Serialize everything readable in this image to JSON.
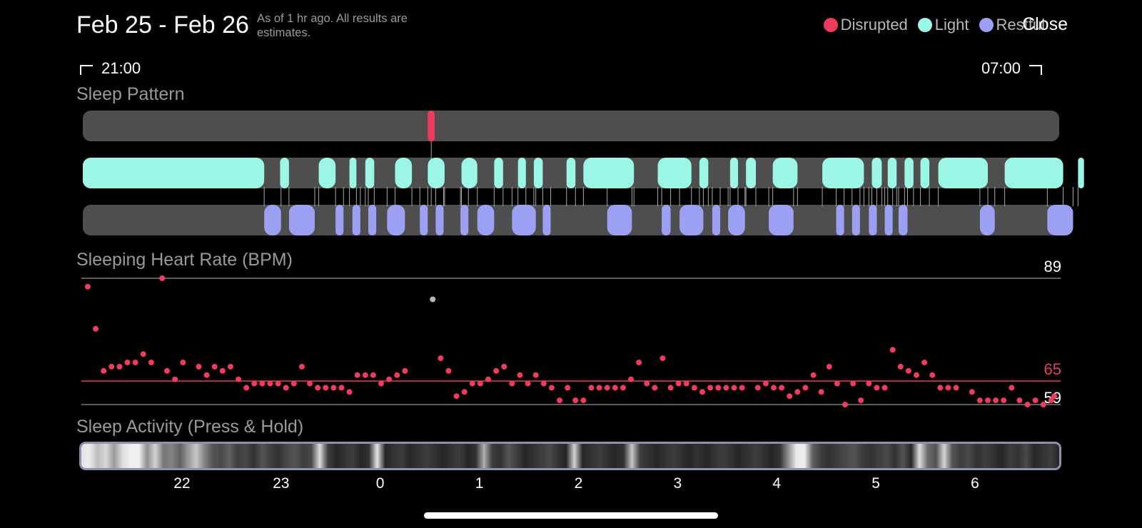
{
  "header": {
    "title": "Feb 25 - Feb 26",
    "note": "As of 1 hr ago. All results are estimates.",
    "close_label": "Close"
  },
  "legend": [
    {
      "label": "Disrupted",
      "color": "#ef3b5d"
    },
    {
      "label": "Light",
      "color": "#9bf6e6"
    },
    {
      "label": "Restful",
      "color": "#9ba0f2"
    }
  ],
  "time_range": {
    "start": "21:00",
    "end": "07:00"
  },
  "sections": {
    "sleep_pattern": "Sleep Pattern",
    "heart_rate": "Sleeping Heart Rate (BPM)",
    "activity": "Sleep Activity (Press & Hold)"
  },
  "x_axis": {
    "labels": [
      "22",
      "23",
      "0",
      "1",
      "2",
      "3",
      "4",
      "5",
      "6"
    ]
  },
  "colors": {
    "track": "#4e4e4e",
    "disrupted": "#ef3b5d",
    "light": "#9bf6e6",
    "restful": "#9ba0f2",
    "avg_line": "#e0415e"
  },
  "sleep_pattern": {
    "window_hours": [
      21.0,
      6.85
    ],
    "disrupted": [
      [
        0.48,
        0.55
      ]
    ],
    "light": [
      [
        21.0,
        22.83
      ],
      [
        22.99,
        23.08
      ],
      [
        23.38,
        23.55
      ],
      [
        23.69,
        23.76
      ],
      [
        23.85,
        23.94
      ],
      [
        24.15,
        24.32
      ],
      [
        24.48,
        24.65
      ],
      [
        24.82,
        24.98
      ],
      [
        25.15,
        25.24
      ],
      [
        25.39,
        25.47
      ],
      [
        25.55,
        25.64
      ],
      [
        25.88,
        25.97
      ],
      [
        26.05,
        26.56
      ],
      [
        26.8,
        27.14
      ],
      [
        27.22,
        27.31
      ],
      [
        27.53,
        27.61
      ],
      [
        27.69,
        27.79
      ],
      [
        27.96,
        28.21
      ],
      [
        28.46,
        28.88
      ],
      [
        28.96,
        29.06
      ],
      [
        29.12,
        29.21
      ],
      [
        29.29,
        29.38
      ],
      [
        29.45,
        29.54
      ],
      [
        29.63,
        30.13
      ],
      [
        30.3,
        30.89
      ],
      [
        31.04,
        31.1
      ]
    ],
    "restful": [
      [
        22.83,
        23.0
      ],
      [
        23.08,
        23.34
      ],
      [
        23.55,
        23.63
      ],
      [
        23.72,
        23.8
      ],
      [
        23.88,
        23.96
      ],
      [
        24.07,
        24.25
      ],
      [
        24.4,
        24.48
      ],
      [
        24.56,
        24.64
      ],
      [
        24.81,
        24.89
      ],
      [
        24.98,
        25.15
      ],
      [
        25.33,
        25.57
      ],
      [
        25.64,
        25.72
      ],
      [
        26.29,
        26.54
      ],
      [
        26.84,
        26.93
      ],
      [
        27.02,
        27.26
      ],
      [
        27.35,
        27.43
      ],
      [
        27.51,
        27.68
      ],
      [
        27.92,
        28.17
      ],
      [
        28.6,
        28.68
      ],
      [
        28.76,
        28.84
      ],
      [
        28.93,
        29.01
      ],
      [
        29.09,
        29.17
      ],
      [
        29.23,
        29.32
      ],
      [
        30.05,
        30.2
      ],
      [
        30.73,
        30.99
      ]
    ],
    "transitions": [
      22.83,
      23.0,
      23.08,
      23.34,
      23.38,
      23.55,
      23.63,
      23.69,
      23.76,
      23.8,
      23.85,
      23.88,
      23.94,
      24.07,
      24.15,
      24.32,
      24.4,
      24.48,
      24.56,
      24.64,
      24.65,
      24.81,
      24.82,
      24.89,
      24.98,
      25.15,
      25.24,
      25.33,
      25.39,
      25.47,
      25.55,
      25.57,
      25.64,
      25.72,
      25.88,
      25.97,
      26.05,
      26.29,
      26.54,
      26.56,
      26.8,
      26.84,
      26.93,
      27.02,
      27.14,
      27.22,
      27.26,
      27.31,
      27.35,
      27.43,
      27.51,
      27.53,
      27.61,
      27.68,
      27.69,
      27.79,
      27.92,
      27.96,
      28.17,
      28.21,
      28.46,
      28.6,
      28.68,
      28.76,
      28.84,
      28.88,
      28.93,
      28.96,
      29.01,
      29.06,
      29.09,
      29.12,
      29.17,
      29.21,
      29.23,
      29.29,
      29.32,
      29.38,
      29.45,
      29.54,
      29.63,
      30.05,
      30.13,
      30.2,
      30.3,
      30.73,
      30.89,
      30.99,
      31.04
    ]
  },
  "heart_rate": {
    "max_label": "89",
    "avg_label": "65",
    "min_label": "59",
    "y_range": [
      59,
      89
    ],
    "x_range": [
      21.0,
      6.85
    ],
    "highlight_point": [
      21.8,
      89.0
    ],
    "gray_point": [
      24.53,
      84.0
    ],
    "points": [
      [
        21.05,
        87.0
      ],
      [
        21.13,
        77.0
      ],
      [
        21.21,
        67.0
      ],
      [
        21.29,
        68.0
      ],
      [
        21.37,
        68.0
      ],
      [
        21.45,
        69.0
      ],
      [
        21.53,
        69.0
      ],
      [
        21.61,
        71.0
      ],
      [
        21.69,
        69.0
      ],
      [
        21.77,
        null
      ],
      [
        21.85,
        67.0
      ],
      [
        21.93,
        65.0
      ],
      [
        22.01,
        69.0
      ],
      [
        22.09,
        null
      ],
      [
        22.17,
        68.0
      ],
      [
        22.25,
        66.0
      ],
      [
        22.33,
        68.0
      ],
      [
        22.41,
        67.0
      ],
      [
        22.49,
        68.0
      ],
      [
        22.57,
        65.0
      ],
      [
        22.65,
        63.0
      ],
      [
        22.73,
        64.0
      ],
      [
        22.81,
        64.0
      ],
      [
        22.89,
        64.0
      ],
      [
        22.97,
        64.0
      ],
      [
        23.05,
        63.0
      ],
      [
        23.13,
        64.0
      ],
      [
        23.21,
        68.0
      ],
      [
        23.29,
        64.0
      ],
      [
        23.37,
        63.0
      ],
      [
        23.45,
        63.0
      ],
      [
        23.53,
        63.0
      ],
      [
        23.61,
        63.0
      ],
      [
        23.69,
        62.0
      ],
      [
        23.77,
        66.0
      ],
      [
        23.85,
        66.0
      ],
      [
        23.93,
        66.0
      ],
      [
        24.01,
        64.0
      ],
      [
        24.09,
        65.0
      ],
      [
        24.17,
        66.0
      ],
      [
        24.25,
        67.0
      ],
      [
        24.33,
        null
      ],
      [
        24.45,
        null
      ],
      [
        24.61,
        70.0
      ],
      [
        24.69,
        67.0
      ],
      [
        24.77,
        61.0
      ],
      [
        24.85,
        62.0
      ],
      [
        24.93,
        64.0
      ],
      [
        25.01,
        64.0
      ],
      [
        25.09,
        65.0
      ],
      [
        25.17,
        67.0
      ],
      [
        25.25,
        68.0
      ],
      [
        25.33,
        64.0
      ],
      [
        25.41,
        66.0
      ],
      [
        25.49,
        64.0
      ],
      [
        25.57,
        66.0
      ],
      [
        25.65,
        64.0
      ],
      [
        25.73,
        63.0
      ],
      [
        25.81,
        60.0
      ],
      [
        25.89,
        63.0
      ],
      [
        25.97,
        60.0
      ],
      [
        26.05,
        60.0
      ],
      [
        26.13,
        63.0
      ],
      [
        26.21,
        63.0
      ],
      [
        26.29,
        63.0
      ],
      [
        26.37,
        63.0
      ],
      [
        26.45,
        63.0
      ],
      [
        26.53,
        65.0
      ],
      [
        26.61,
        69.0
      ],
      [
        26.69,
        64.0
      ],
      [
        26.77,
        63.0
      ],
      [
        26.85,
        70.0
      ],
      [
        26.93,
        63.0
      ],
      [
        27.01,
        64.0
      ],
      [
        27.09,
        64.0
      ],
      [
        27.17,
        63.0
      ],
      [
        27.25,
        62.0
      ],
      [
        27.33,
        63.0
      ],
      [
        27.41,
        63.0
      ],
      [
        27.49,
        63.0
      ],
      [
        27.57,
        63.0
      ],
      [
        27.65,
        63.0
      ],
      [
        27.73,
        null
      ],
      [
        27.81,
        63.0
      ],
      [
        27.89,
        64.0
      ],
      [
        27.97,
        63.0
      ],
      [
        28.05,
        63.0
      ],
      [
        28.13,
        61.0
      ],
      [
        28.21,
        62.0
      ],
      [
        28.29,
        63.0
      ],
      [
        28.37,
        66.0
      ],
      [
        28.45,
        62.0
      ],
      [
        28.53,
        68.0
      ],
      [
        28.61,
        64.0
      ],
      [
        28.69,
        59.0
      ],
      [
        28.77,
        64.0
      ],
      [
        28.85,
        60.0
      ],
      [
        28.93,
        64.0
      ],
      [
        29.01,
        63.0
      ],
      [
        29.09,
        63.0
      ],
      [
        29.17,
        72.0
      ],
      [
        29.25,
        68.0
      ],
      [
        29.33,
        67.0
      ],
      [
        29.41,
        66.0
      ],
      [
        29.49,
        69.0
      ],
      [
        29.57,
        66.0
      ],
      [
        29.65,
        63.0
      ],
      [
        29.73,
        63.0
      ],
      [
        29.81,
        63.0
      ],
      [
        29.89,
        null
      ],
      [
        29.97,
        62.0
      ],
      [
        30.05,
        60.0
      ],
      [
        30.13,
        60.0
      ],
      [
        30.21,
        60.0
      ],
      [
        30.29,
        60.0
      ],
      [
        30.37,
        63.0
      ],
      [
        30.45,
        60.0
      ],
      [
        30.53,
        59.0
      ],
      [
        30.61,
        60.0
      ],
      [
        30.69,
        59.0
      ],
      [
        30.77,
        60.0
      ],
      [
        30.8,
        61.0
      ]
    ]
  },
  "activity": {
    "levels": [
      0.92,
      0.95,
      0.75,
      0.88,
      0.6,
      0.9,
      0.97,
      0.98,
      0.55,
      0.85,
      0.45,
      0.5,
      0.35,
      0.6,
      0.8,
      0.5,
      0.3,
      0.25,
      0.35,
      0.2,
      0.25,
      0.15,
      0.3,
      0.2,
      0.15,
      0.25,
      0.3,
      0.2,
      0.25,
      0.9,
      0.2,
      0.1,
      0.15,
      0.2,
      0.1,
      0.15,
      0.92,
      0.1,
      0.15,
      0.2,
      0.1,
      0.15,
      0.2,
      0.15,
      0.1,
      0.15,
      0.2,
      0.1,
      0.15,
      0.7,
      0.2,
      0.15,
      0.3,
      0.2,
      0.1,
      0.15,
      0.2,
      0.25,
      0.15,
      0.1,
      0.85,
      0.1,
      0.15,
      0.2,
      0.15,
      0.1,
      0.15,
      0.8,
      0.2,
      0.15,
      0.1,
      0.15,
      0.2,
      0.15,
      0.1,
      0.15,
      0.1,
      0.15,
      0.2,
      0.15,
      0.1,
      0.15,
      0.2,
      0.15,
      0.1,
      0.15,
      0.55,
      0.95,
      0.97,
      0.35,
      0.2,
      0.15,
      0.2,
      0.25,
      0.3,
      0.2,
      0.15,
      0.2,
      0.25,
      0.15,
      0.3,
      0.1,
      0.9,
      0.4,
      0.3,
      0.85,
      0.3,
      0.2,
      0.25,
      0.15,
      0.2,
      0.15,
      0.1,
      0.2,
      0.15,
      0.25,
      0.1,
      0.15,
      0.2,
      0.1
    ]
  }
}
